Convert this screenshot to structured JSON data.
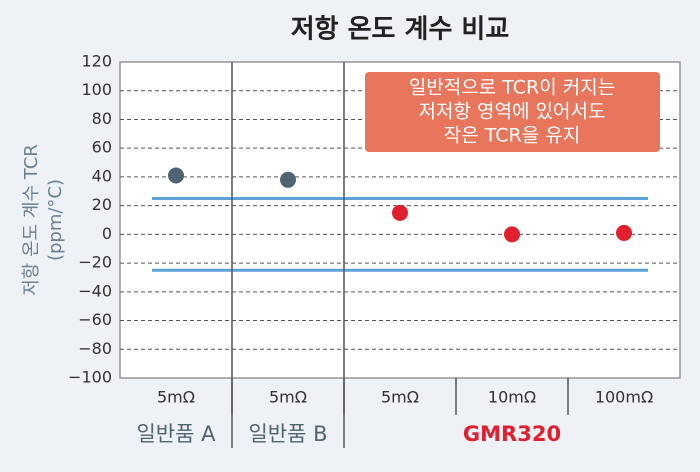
{
  "chart_data": {
    "type": "dot",
    "title": "저항 온도 계수 비교",
    "y_label": [
      "저항 온도 계수 TCR",
      "(ppm/°C)"
    ],
    "categories": [
      "5mΩ",
      "5mΩ",
      "5mΩ",
      "10mΩ",
      "100mΩ"
    ],
    "values": [
      41,
      38,
      15,
      0,
      1
    ],
    "colors": [
      "#4f6472",
      "#4f6472",
      "#e0202e",
      "#e0202e",
      "#e0202e"
    ],
    "groups": [
      {
        "label": "일반품 A",
        "size": 1,
        "color": "#4f6472"
      },
      {
        "label": "일반품 B",
        "size": 1,
        "color": "#4f6472"
      },
      {
        "label": "GMR320",
        "size": 3,
        "color": "#e0202e"
      }
    ],
    "reference_lines": [
      {
        "value": 25,
        "color": "#5ba3d9"
      },
      {
        "value": -25,
        "color": "#5ba3d9"
      }
    ],
    "annotation": {
      "lines": [
        "일반적으로 TCR이 커지는",
        "저저항 영역에 있어서도",
        "작은 TCR을 유지"
      ],
      "color": "#e8765c"
    },
    "ylim": [
      -100,
      120
    ],
    "yticks": [
      {
        "value": -100,
        "label": "−100"
      },
      {
        "value": -80,
        "label": "−80"
      },
      {
        "value": -60,
        "label": "−60"
      },
      {
        "value": -40,
        "label": "−40"
      },
      {
        "value": -20,
        "label": "−20"
      },
      0,
      20,
      40,
      60,
      80,
      100,
      120
    ],
    "grid": true
  }
}
